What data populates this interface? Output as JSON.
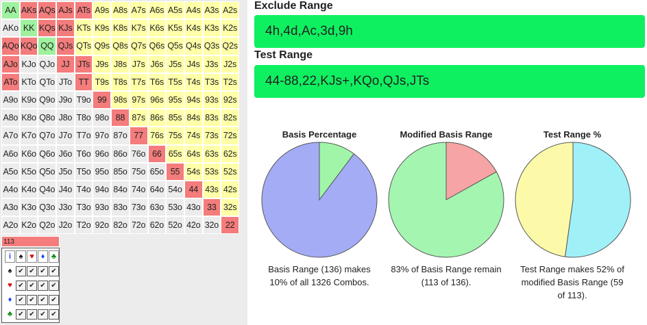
{
  "grid": {
    "rows": [
      [
        "AA",
        "AKs",
        "AQs",
        "AJs",
        "ATs",
        "A9s",
        "A8s",
        "A7s",
        "A6s",
        "A5s",
        "A4s",
        "A3s",
        "A2s"
      ],
      [
        "AKo",
        "KK",
        "KQs",
        "KJs",
        "KTs",
        "K9s",
        "K8s",
        "K7s",
        "K6s",
        "K5s",
        "K4s",
        "K3s",
        "K2s"
      ],
      [
        "AQo",
        "KQo",
        "QQ",
        "QJs",
        "QTs",
        "Q9s",
        "Q8s",
        "Q7s",
        "Q6s",
        "Q5s",
        "Q4s",
        "Q3s",
        "Q2s"
      ],
      [
        "AJo",
        "KJo",
        "QJo",
        "JJ",
        "JTs",
        "J9s",
        "J8s",
        "J7s",
        "J6s",
        "J5s",
        "J4s",
        "J3s",
        "J2s"
      ],
      [
        "ATo",
        "KTo",
        "QTo",
        "JTo",
        "TT",
        "T9s",
        "T8s",
        "T7s",
        "T6s",
        "T5s",
        "T4s",
        "T3s",
        "T2s"
      ],
      [
        "A9o",
        "K9o",
        "Q9o",
        "J9o",
        "T9o",
        "99",
        "98s",
        "97s",
        "96s",
        "95s",
        "94s",
        "93s",
        "92s"
      ],
      [
        "A8o",
        "K8o",
        "Q8o",
        "J8o",
        "T8o",
        "98o",
        "88",
        "87s",
        "86s",
        "85s",
        "84s",
        "83s",
        "82s"
      ],
      [
        "A7o",
        "K7o",
        "Q7o",
        "J7o",
        "T7o",
        "97o",
        "87o",
        "77",
        "76s",
        "75s",
        "74s",
        "73s",
        "72s"
      ],
      [
        "A6o",
        "K6o",
        "Q6o",
        "J6o",
        "T6o",
        "96o",
        "86o",
        "76o",
        "66",
        "65s",
        "64s",
        "63s",
        "62s"
      ],
      [
        "A5o",
        "K5o",
        "Q5o",
        "J5o",
        "T5o",
        "95o",
        "85o",
        "75o",
        "65o",
        "55",
        "54s",
        "53s",
        "52s"
      ],
      [
        "A4o",
        "K4o",
        "Q4o",
        "J4o",
        "T4o",
        "94o",
        "84o",
        "74o",
        "64o",
        "54o",
        "44",
        "43s",
        "42s"
      ],
      [
        "A3o",
        "K3o",
        "Q3o",
        "J3o",
        "T3o",
        "93o",
        "83o",
        "73o",
        "63o",
        "53o",
        "43o",
        "33",
        "32s"
      ],
      [
        "A2o",
        "K2o",
        "Q2o",
        "J2o",
        "T2o",
        "92o",
        "82o",
        "72o",
        "62o",
        "52o",
        "42o",
        "32o",
        "22"
      ]
    ],
    "states": [
      [
        "t",
        "e",
        "e",
        "e",
        "e",
        "m",
        "m",
        "m",
        "m",
        "m",
        "m",
        "m",
        "m"
      ],
      [
        "n",
        "t",
        "e",
        "e",
        "m",
        "m",
        "m",
        "m",
        "m",
        "m",
        "m",
        "m",
        "m"
      ],
      [
        "e",
        "e",
        "t",
        "e",
        "m",
        "m",
        "m",
        "m",
        "m",
        "m",
        "m",
        "m",
        "m"
      ],
      [
        "e",
        "n",
        "n",
        "e",
        "e",
        "m",
        "m",
        "m",
        "m",
        "m",
        "m",
        "m",
        "m"
      ],
      [
        "e",
        "n",
        "n",
        "n",
        "e",
        "m",
        "m",
        "m",
        "m",
        "m",
        "m",
        "m",
        "m"
      ],
      [
        "n",
        "n",
        "n",
        "n",
        "n",
        "e",
        "m",
        "m",
        "m",
        "m",
        "m",
        "m",
        "m"
      ],
      [
        "n",
        "n",
        "n",
        "n",
        "n",
        "n",
        "e",
        "m",
        "m",
        "m",
        "m",
        "m",
        "m"
      ],
      [
        "n",
        "n",
        "n",
        "n",
        "n",
        "n",
        "n",
        "e",
        "m",
        "m",
        "m",
        "m",
        "m"
      ],
      [
        "n",
        "n",
        "n",
        "n",
        "n",
        "n",
        "n",
        "n",
        "e",
        "m",
        "m",
        "m",
        "m"
      ],
      [
        "n",
        "n",
        "n",
        "n",
        "n",
        "n",
        "n",
        "n",
        "n",
        "e",
        "m",
        "m",
        "m"
      ],
      [
        "n",
        "n",
        "n",
        "n",
        "n",
        "n",
        "n",
        "n",
        "n",
        "n",
        "e",
        "m",
        "m"
      ],
      [
        "n",
        "n",
        "n",
        "n",
        "n",
        "n",
        "n",
        "n",
        "n",
        "n",
        "n",
        "e",
        "m"
      ],
      [
        "n",
        "n",
        "n",
        "n",
        "n",
        "n",
        "n",
        "n",
        "n",
        "n",
        "n",
        "n",
        "e"
      ]
    ]
  },
  "colors": {
    "excluded": "#f47c7c",
    "test": "#9ef29e",
    "modified": "#ffffa8",
    "none": "#ececec",
    "input_bg": "#0ff060"
  },
  "combo_counter": "113",
  "suit_filter": {
    "header_label": "i",
    "suits": [
      {
        "symbol": "♠",
        "color": "#111111",
        "icon": "spade-icon"
      },
      {
        "symbol": "♥",
        "color": "#e00000",
        "icon": "heart-icon"
      },
      {
        "symbol": "♦",
        "color": "#1a3fff",
        "icon": "diamond-icon"
      },
      {
        "symbol": "♣",
        "color": "#0a8a0a",
        "icon": "club-icon"
      }
    ],
    "check_glyph": "✔"
  },
  "exclude": {
    "label": "Exclude Range",
    "value": "4h,4d,Ac,3d,9h"
  },
  "test": {
    "label": "Test Range",
    "value": "44-88,22,KJs+,KQo,QJs,JTs"
  },
  "pies": [
    {
      "title": "Basis Percentage",
      "caption": [
        "Basis Range (136) makes",
        "10% of all 1326 Combos."
      ],
      "slices": [
        {
          "value": 10.26,
          "color": "#a0f5a8"
        },
        {
          "value": 89.74,
          "color": "#a4acf5"
        }
      ]
    },
    {
      "title": "Modified Basis Range",
      "caption": [
        "83% of Basis Range remain",
        "(113 of 136)."
      ],
      "slices": [
        {
          "value": 16.9,
          "color": "#f6a4a4"
        },
        {
          "value": 83.1,
          "color": "#a4f5b0"
        }
      ]
    },
    {
      "title": "Test Range %",
      "caption": [
        "Test Range makes 52% of",
        "modified Basis Range (59",
        "of 113)."
      ],
      "slices": [
        {
          "value": 52.2,
          "color": "#a0f0f8"
        },
        {
          "value": 47.8,
          "color": "#fcfaa8"
        }
      ]
    }
  ]
}
